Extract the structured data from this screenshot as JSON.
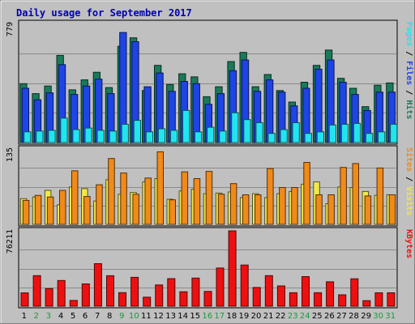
{
  "chart_data": {
    "type": "bar",
    "title": "Daily usage for September 2017",
    "colors": {
      "hits": "#1a7a5a",
      "files": "#1e44e6",
      "pages": "#22e4ee",
      "visits": "#f0e84a",
      "sites": "#f08a1a",
      "kbytes": "#ee1010",
      "weekend_day": "#1a9a3a",
      "weekday": "#000000",
      "title": "#0000b0",
      "background": "#c0c0c0"
    },
    "categories": [
      "1",
      "2",
      "3",
      "4",
      "5",
      "6",
      "7",
      "8",
      "9",
      "10",
      "11",
      "12",
      "13",
      "14",
      "15",
      "16",
      "17",
      "18",
      "19",
      "20",
      "21",
      "22",
      "23",
      "24",
      "25",
      "26",
      "27",
      "28",
      "29",
      "30",
      "31"
    ],
    "weekend_days": [
      "2",
      "3",
      "9",
      "10",
      "16",
      "17",
      "23",
      "24",
      "30",
      "31"
    ],
    "panels": [
      {
        "id": "hits_files_pages",
        "ymax_label": "779",
        "ylim": [
          0,
          779
        ],
        "legend": [
          {
            "text": "Hits",
            "color": "#1a7a5a"
          },
          {
            "text": "/",
            "color": "#000000"
          },
          {
            "text": "Files",
            "color": "#1e44e6"
          },
          {
            "text": "/",
            "color": "#000000"
          },
          {
            "text": "Pages",
            "color": "#22e4ee"
          }
        ],
        "series": [
          {
            "name": "Hits",
            "color": "#1a7a5a",
            "values": [
              385,
              320,
              370,
              570,
              345,
              410,
              460,
              360,
              630,
              685,
              340,
              505,
              380,
              450,
              430,
              300,
              365,
              530,
              590,
              365,
              445,
              340,
              265,
              395,
              505,
              605,
              420,
              355,
              235,
              375,
              390
            ]
          },
          {
            "name": "Files",
            "color": "#1e44e6",
            "values": [
              355,
              280,
              325,
              510,
              315,
              370,
              415,
              320,
              720,
              660,
              365,
              455,
              335,
              400,
              385,
              250,
              320,
              470,
              540,
              335,
              410,
              330,
              240,
              355,
              480,
              540,
              395,
              315,
              210,
              330,
              330
            ]
          },
          {
            "name": "Pages",
            "color": "#22e4ee",
            "values": [
              70,
              75,
              80,
              160,
              85,
              95,
              80,
              75,
              120,
              145,
              70,
              90,
              80,
              210,
              70,
              100,
              75,
              195,
              150,
              130,
              60,
              85,
              130,
              60,
              70,
              115,
              120,
              125,
              60,
              70,
              120
            ]
          }
        ]
      },
      {
        "id": "visits_sites",
        "ymax_label": "135",
        "ylim": [
          0,
          135
        ],
        "legend": [
          {
            "text": "Visits",
            "color": "#f0e84a"
          },
          {
            "text": "/",
            "color": "#000000"
          },
          {
            "text": "Sites",
            "color": "#f08a1a"
          }
        ],
        "series": [
          {
            "name": "Visits",
            "color": "#f0e84a",
            "values": [
              46,
              49,
              61,
              35,
              67,
              64,
              42,
              80,
              54,
              57,
              76,
              82,
              45,
              60,
              63,
              55,
              56,
              58,
              48,
              55,
              48,
              55,
              59,
              72,
              76,
              37,
              67,
              66,
              59,
              52,
              53
            ]
          },
          {
            "name": "Sites",
            "color": "#f08a1a",
            "values": [
              43,
              52,
              49,
              61,
              96,
              50,
              71,
              118,
              92,
              54,
              83,
              130,
              44,
              94,
              82,
              95,
              54,
              73,
              53,
              53,
              100,
              66,
              66,
              111,
              53,
              53,
              102,
              109,
              51,
              101,
              53
            ]
          }
        ]
      },
      {
        "id": "kbytes",
        "ymax_label": "76211",
        "ylim": [
          0,
          76211
        ],
        "legend": [
          {
            "text": "KBytes",
            "color": "#ee1010"
          }
        ],
        "series": [
          {
            "name": "KBytes",
            "color": "#ee1010",
            "values": [
              13400,
              30900,
              17800,
              26000,
              5800,
              22500,
              43000,
              30800,
              13700,
              29200,
              9100,
              21500,
              27900,
              14600,
              28400,
              14900,
              38600,
              76211,
              41600,
              18900,
              30900,
              20500,
              13600,
              29900,
              13600,
              24700,
              11500,
              27700,
              5600,
              13500,
              13500
            ]
          }
        ]
      }
    ]
  }
}
